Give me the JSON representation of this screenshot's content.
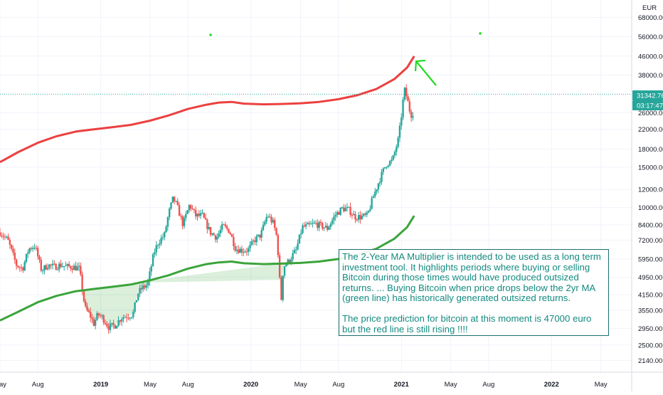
{
  "currency": "EUR",
  "price_label": "31342.76",
  "countdown_label": "03:17:47",
  "colors": {
    "up": "#26a69a",
    "down": "#ef5350",
    "ma_red": "#ec4040",
    "ma_green": "#3aa43a",
    "arrow": "#22dd22",
    "note_text": "#138a80",
    "note_border": "#1b6d6d",
    "price_badge": "#26a69a"
  },
  "note": {
    "paragraph1": "The 2-Year MA Multiplier is intended to be used as a long term investment tool. It highlights periods where buying or selling Bitcoin during those times would have produced outsized returns. ... Buying Bitcoin when price drops below the 2yr MA (green line) has historically generated outsized returns.",
    "paragraph2": "The price prediction for bitcoin at this moment is 47000 euro but the red line is still rising !!!!"
  },
  "chart_data": {
    "type": "line",
    "y_scale": "log",
    "ylim": [
      1900,
      81000
    ],
    "xlim": [
      "2018-05-01",
      "2022-07-15"
    ],
    "y_ticks": [
      "68000.00",
      "56000.00",
      "46000.00",
      "38000.00",
      "26000.00",
      "22000.00",
      "18000.00",
      "15000.00",
      "12000.00",
      "10000.00",
      "8400.00",
      "7200.00",
      "5950.00",
      "4950.00",
      "4150.00",
      "3550.00",
      "2950.00",
      "2500.00",
      "2140.00"
    ],
    "x_ticks": [
      {
        "label": "May",
        "date": "2018-05-01",
        "bold": false
      },
      {
        "label": "Aug",
        "date": "2018-08-01",
        "bold": false
      },
      {
        "label": "2019",
        "date": "2019-01-01",
        "bold": true
      },
      {
        "label": "May",
        "date": "2019-05-01",
        "bold": false
      },
      {
        "label": "Aug",
        "date": "2019-08-01",
        "bold": false
      },
      {
        "label": "2020",
        "date": "2020-01-01",
        "bold": true
      },
      {
        "label": "May",
        "date": "2020-05-01",
        "bold": false
      },
      {
        "label": "Aug",
        "date": "2020-08-01",
        "bold": false
      },
      {
        "label": "2021",
        "date": "2021-01-01",
        "bold": true
      },
      {
        "label": "May",
        "date": "2021-05-01",
        "bold": false
      },
      {
        "label": "Aug",
        "date": "2021-08-01",
        "bold": false
      },
      {
        "label": "2022",
        "date": "2022-01-01",
        "bold": true
      },
      {
        "label": "May",
        "date": "2022-05-01",
        "bold": false
      }
    ],
    "current_price": 31342.76,
    "series": [
      {
        "kind": "price",
        "x": [
          "2018-05-01",
          "2018-05-20",
          "2018-06-10",
          "2018-06-25",
          "2018-07-10",
          "2018-07-25",
          "2018-08-10",
          "2018-08-25",
          "2018-09-10",
          "2018-09-25",
          "2018-10-10",
          "2018-10-25",
          "2018-11-10",
          "2018-11-20",
          "2018-11-25",
          "2018-12-05",
          "2018-12-15",
          "2018-12-25",
          "2019-01-05",
          "2019-01-20",
          "2019-02-05",
          "2019-02-20",
          "2019-03-05",
          "2019-03-20",
          "2019-04-01",
          "2019-04-10",
          "2019-04-25",
          "2019-05-10",
          "2019-05-20",
          "2019-06-05",
          "2019-06-15",
          "2019-06-26",
          "2019-07-05",
          "2019-07-20",
          "2019-08-05",
          "2019-08-20",
          "2019-09-05",
          "2019-09-24",
          "2019-10-10",
          "2019-10-25",
          "2019-11-10",
          "2019-11-25",
          "2019-12-10",
          "2019-12-25",
          "2020-01-10",
          "2020-01-25",
          "2020-02-10",
          "2020-02-25",
          "2020-03-05",
          "2020-03-12",
          "2020-03-13",
          "2020-03-20",
          "2020-04-01",
          "2020-04-20",
          "2020-05-05",
          "2020-05-20",
          "2020-06-05",
          "2020-06-20",
          "2020-07-05",
          "2020-07-25",
          "2020-08-10",
          "2020-08-25",
          "2020-09-10",
          "2020-09-25",
          "2020-10-10",
          "2020-10-25",
          "2020-11-10",
          "2020-11-25",
          "2020-12-10",
          "2020-12-25",
          "2021-01-03",
          "2021-01-08",
          "2021-01-15",
          "2021-01-20",
          "2021-01-27",
          "2021-02-01"
        ],
        "y": [
          7800,
          7200,
          5600,
          5400,
          6600,
          6800,
          5300,
          5600,
          5500,
          5600,
          5500,
          5500,
          5400,
          4000,
          3600,
          3400,
          3100,
          3400,
          3300,
          3000,
          3050,
          3300,
          3350,
          3400,
          4200,
          4400,
          4600,
          6300,
          7000,
          7600,
          9400,
          11000,
          10200,
          8400,
          10300,
          9200,
          9200,
          7800,
          7400,
          8300,
          7900,
          6600,
          6500,
          6500,
          7200,
          7600,
          9300,
          8500,
          7300,
          4500,
          3500,
          5500,
          5800,
          6500,
          8200,
          8300,
          8500,
          8300,
          8100,
          9300,
          9900,
          9800,
          9100,
          9100,
          9200,
          11200,
          13400,
          15500,
          16000,
          20000,
          27000,
          33000,
          30000,
          27000,
          25000,
          27500
        ]
      },
      {
        "kind": "ma_2yr_x5",
        "x": [
          "2018-05-01",
          "2018-06-15",
          "2018-08-01",
          "2018-09-15",
          "2018-11-01",
          "2018-12-15",
          "2019-02-01",
          "2019-03-15",
          "2019-05-01",
          "2019-06-15",
          "2019-08-01",
          "2019-09-15",
          "2019-10-15",
          "2019-11-15",
          "2019-12-15",
          "2020-02-01",
          "2020-03-15",
          "2020-05-01",
          "2020-06-15",
          "2020-08-01",
          "2020-09-15",
          "2020-11-01",
          "2020-12-15",
          "2021-01-15",
          "2021-02-01"
        ],
        "y": [
          15800,
          17500,
          19200,
          20500,
          21500,
          22000,
          22500,
          23000,
          24000,
          25300,
          27000,
          28200,
          28800,
          29000,
          28500,
          28300,
          28400,
          28600,
          29000,
          29800,
          31000,
          33000,
          36500,
          41000,
          46000
        ]
      },
      {
        "kind": "ma_2yr",
        "x": [
          "2018-05-01",
          "2018-06-15",
          "2018-08-01",
          "2018-09-15",
          "2018-11-01",
          "2018-12-15",
          "2019-02-01",
          "2019-03-15",
          "2019-05-01",
          "2019-06-15",
          "2019-08-01",
          "2019-09-15",
          "2019-10-15",
          "2019-11-15",
          "2019-12-15",
          "2020-02-01",
          "2020-03-15",
          "2020-05-01",
          "2020-06-15",
          "2020-08-01",
          "2020-09-15",
          "2020-11-01",
          "2020-12-15",
          "2021-01-15",
          "2021-02-01"
        ],
        "y": [
          3200,
          3500,
          3850,
          4100,
          4300,
          4400,
          4500,
          4600,
          4800,
          5050,
          5400,
          5650,
          5750,
          5800,
          5700,
          5650,
          5680,
          5720,
          5800,
          5950,
          6200,
          6600,
          7300,
          8200,
          9200
        ]
      }
    ]
  }
}
